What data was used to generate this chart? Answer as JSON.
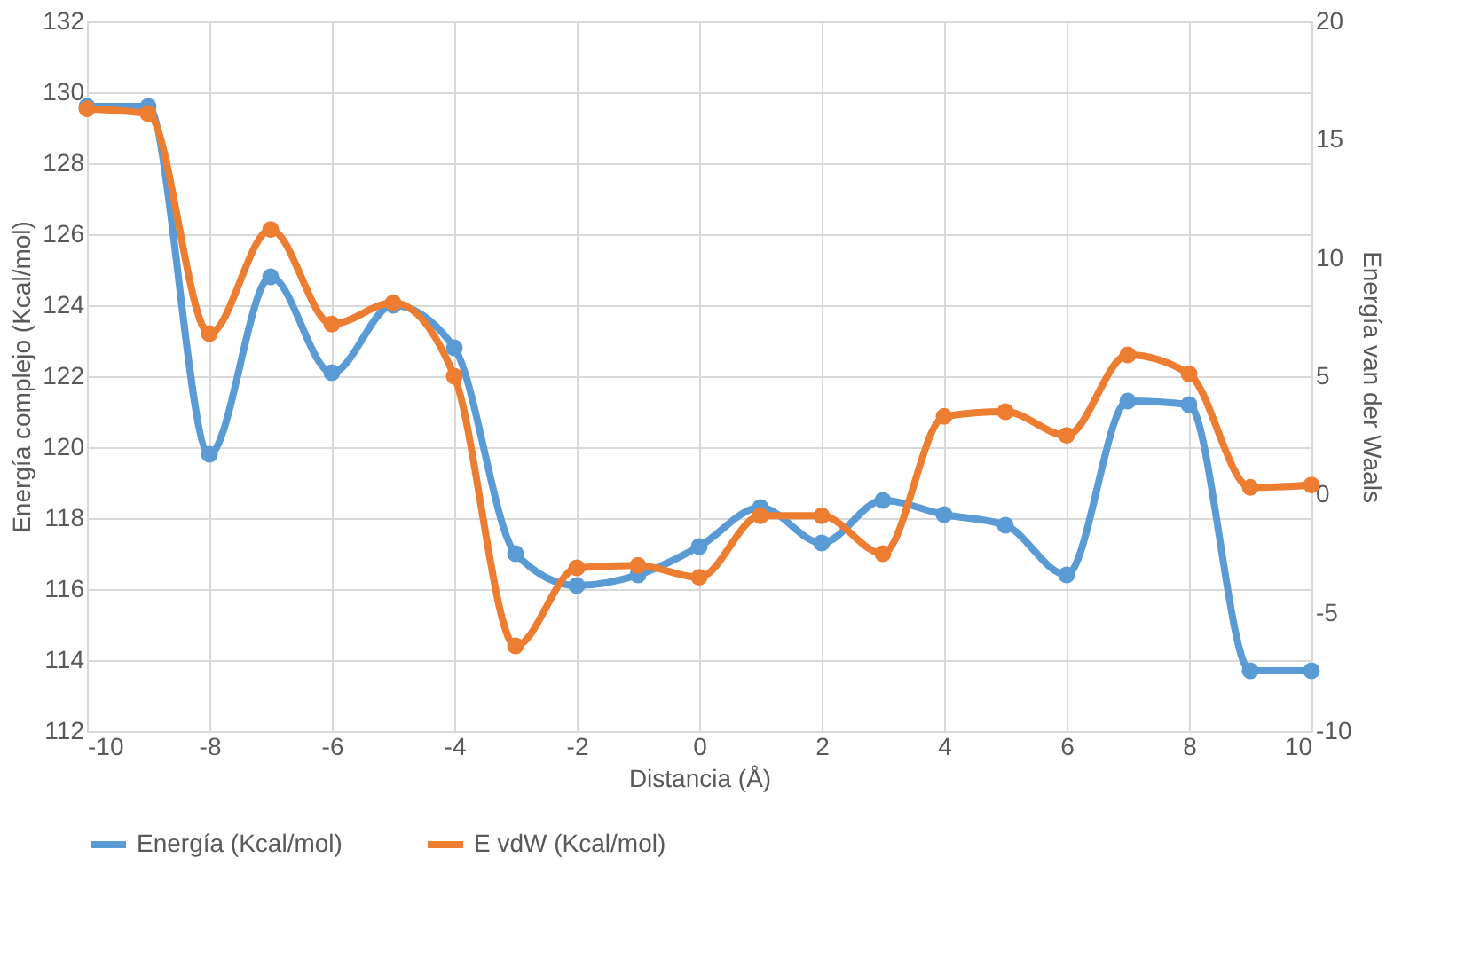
{
  "chart_data": {
    "type": "line",
    "xlabel": "Distancia (Å)",
    "ylabel": "Energía complejo (Kcal/mol)",
    "y2label": "Energía van der Waals",
    "x": [
      -10,
      -9,
      -8,
      -7,
      -6,
      -5,
      -4,
      -3,
      -2,
      -1,
      0,
      1,
      2,
      3,
      4,
      5,
      6,
      7,
      8,
      9,
      10
    ],
    "series": [
      {
        "name": "Energía (Kcal/mol)",
        "color": "#5b9bd5",
        "values": [
          129.6,
          129.6,
          119.8,
          124.8,
          122.1,
          124.0,
          122.8,
          117.0,
          116.1,
          116.4,
          117.2,
          118.3,
          117.3,
          118.5,
          118.1,
          117.8,
          116.4,
          121.3,
          121.2,
          113.7,
          113.7
        ]
      },
      {
        "name": "E vdW (Kcal/mol)",
        "color": "#ed7d31",
        "axis": "y2",
        "values": [
          16.3,
          16.1,
          6.8,
          11.2,
          7.2,
          8.1,
          5.0,
          -6.4,
          -3.1,
          -3.0,
          -3.5,
          -0.9,
          -0.9,
          -2.5,
          3.3,
          3.5,
          2.5,
          5.9,
          5.1,
          0.3,
          0.4
        ]
      }
    ],
    "xlim": [
      -10,
      10
    ],
    "xticks": [
      -10,
      -8,
      -6,
      -4,
      -2,
      0,
      2,
      4,
      6,
      8,
      10
    ],
    "ylim": [
      112,
      132
    ],
    "yticks": [
      112,
      114,
      116,
      118,
      120,
      122,
      124,
      126,
      128,
      130,
      132
    ],
    "y2lim": [
      -10,
      20
    ],
    "y2ticks": [
      -10,
      -5,
      0,
      5,
      10,
      15,
      20
    ],
    "grid": true,
    "legend": "bottom",
    "marker": "circle",
    "line_style": "solid"
  }
}
